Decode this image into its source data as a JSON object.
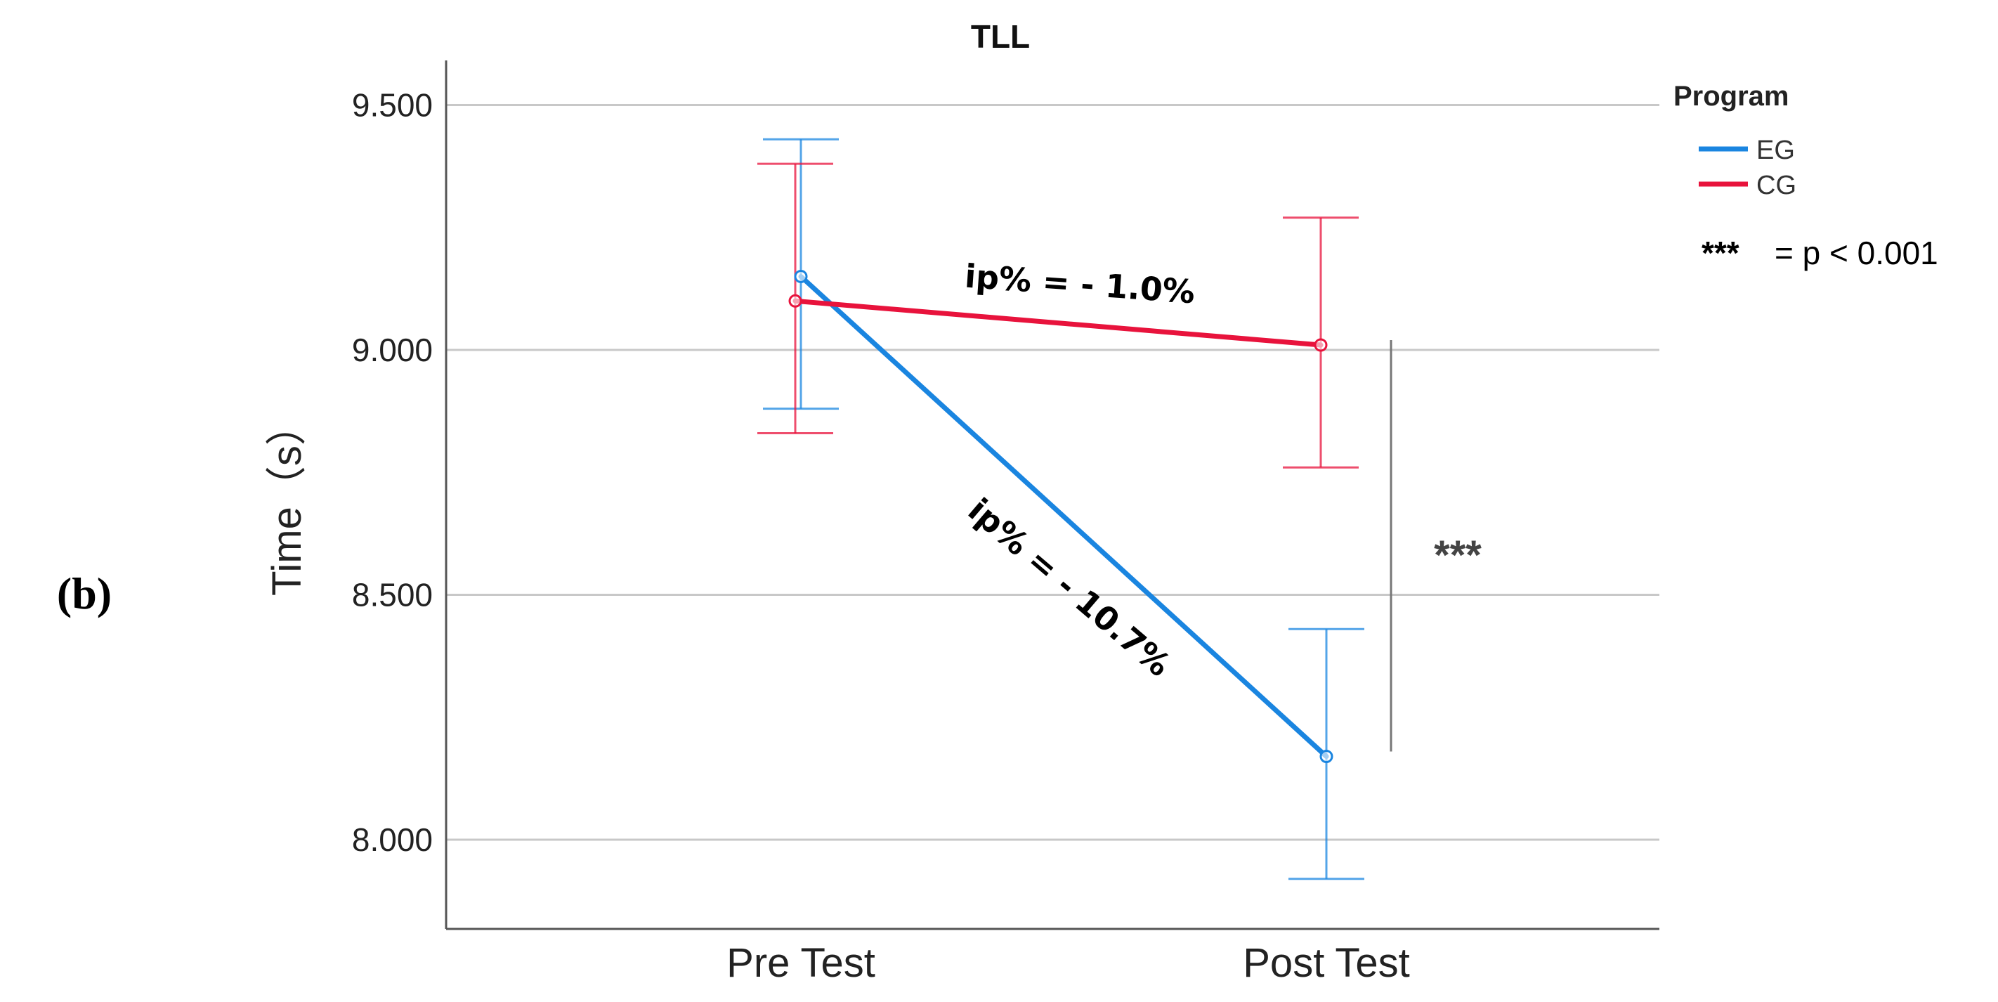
{
  "panel_label": "(b)",
  "chart_data": {
    "type": "line",
    "title": "TLL",
    "xlabel": "",
    "ylabel": "Time（s）",
    "categories": [
      "Pre Test",
      "Post Test"
    ],
    "ylim": [
      7.9,
      9.6
    ],
    "yticks": [
      8.0,
      8.5,
      9.0,
      9.5
    ],
    "ytick_labels": [
      "8.000",
      "8.500",
      "9.000",
      "9.500"
    ],
    "grid": "horizontal",
    "legend": {
      "title": "Program",
      "position": "top-right"
    },
    "series": [
      {
        "name": "EG",
        "color": "#1a85e0",
        "values": [
          9.15,
          8.17
        ],
        "error_low": [
          8.88,
          7.92
        ],
        "error_high": [
          9.43,
          8.43
        ]
      },
      {
        "name": "CG",
        "color": "#e8133c",
        "values": [
          9.1,
          9.01
        ],
        "error_low": [
          8.83,
          8.76
        ],
        "error_high": [
          9.38,
          9.27
        ]
      }
    ],
    "annotations": {
      "cg_change": "ip% = - 1.0%",
      "eg_change": "ip% = - 10.7%",
      "significance_marker": "***",
      "significance_bracket_range": [
        8.18,
        9.02
      ],
      "significance_legend_stars": "***",
      "significance_legend_text": "= p < 0.001"
    }
  }
}
